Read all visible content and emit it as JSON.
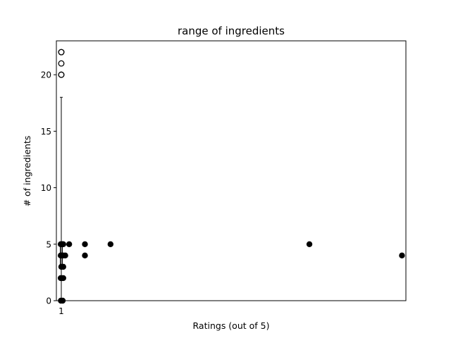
{
  "chart_data": {
    "type": "scatter",
    "title": "range of ingredients",
    "xlabel": "Ratings (out of 5)",
    "ylabel": "# of ingredients",
    "xlim": [
      0.75,
      18.5
    ],
    "ylim": [
      0,
      23
    ],
    "x_ticks": [
      {
        "value": 1,
        "label": "1"
      }
    ],
    "y_ticks": [
      {
        "value": 0,
        "label": "0"
      },
      {
        "value": 5,
        "label": "5"
      },
      {
        "value": 10,
        "label": "10"
      },
      {
        "value": 15,
        "label": "15"
      },
      {
        "value": 20,
        "label": "20"
      }
    ],
    "boxplot": {
      "x": 1,
      "q1": 3,
      "median": 4,
      "q3": 5,
      "whisker_low": 0,
      "whisker_high": 18,
      "outliers": [
        20,
        20,
        21,
        22,
        22
      ]
    },
    "points": [
      {
        "x": 0.97,
        "y": 5
      },
      {
        "x": 1.0,
        "y": 5
      },
      {
        "x": 1.03,
        "y": 5
      },
      {
        "x": 1.07,
        "y": 5
      },
      {
        "x": 1.1,
        "y": 5
      },
      {
        "x": 0.97,
        "y": 4
      },
      {
        "x": 1.0,
        "y": 4
      },
      {
        "x": 1.04,
        "y": 4
      },
      {
        "x": 1.1,
        "y": 4
      },
      {
        "x": 1.2,
        "y": 4
      },
      {
        "x": 1.0,
        "y": 3
      },
      {
        "x": 1.1,
        "y": 3
      },
      {
        "x": 0.97,
        "y": 2
      },
      {
        "x": 1.03,
        "y": 2
      },
      {
        "x": 1.1,
        "y": 2
      },
      {
        "x": 0.98,
        "y": 0
      },
      {
        "x": 1.07,
        "y": 0
      },
      {
        "x": 1.4,
        "y": 5
      },
      {
        "x": 2.2,
        "y": 5
      },
      {
        "x": 2.2,
        "y": 4
      },
      {
        "x": 3.5,
        "y": 5
      },
      {
        "x": 13.6,
        "y": 5
      },
      {
        "x": 18.3,
        "y": 4
      }
    ],
    "colors": {
      "points": "#000000",
      "outlier_fill": "#ffffff",
      "box": "#000000"
    }
  }
}
